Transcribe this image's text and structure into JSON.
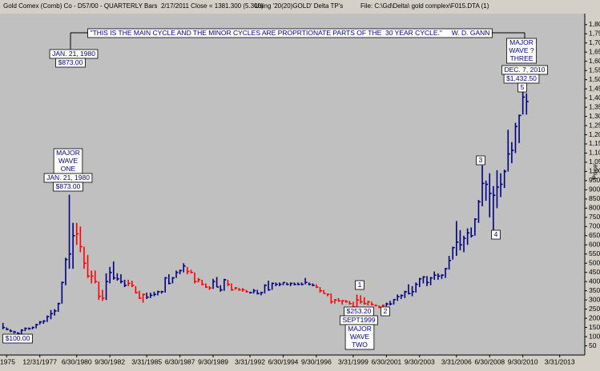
{
  "chart_data": {
    "type": "ohlc",
    "header": [
      "Gold Comex (Comb) Co - D57/00 - QUARTERLY Bars  2/17/2011 Close = 1381.300 (5.300)",
      "Using '20(20)GOLD' Delta TP's",
      "File: C:\\Gd\\Delta\\ gold complex\\F015.DTA (1)"
    ],
    "y_label": "Price",
    "xlim": [
      1975.3,
      2014.95
    ],
    "ylim": [
      0,
      1860
    ],
    "xticks": [
      {
        "value": 1975.75,
        "label": "/1975"
      },
      {
        "value": 1978.0,
        "label": "12/31/1977"
      },
      {
        "value": 1980.5,
        "label": "6/30/1980"
      },
      {
        "value": 1982.75,
        "label": "9/30/1982"
      },
      {
        "value": 1985.25,
        "label": "3/31/1985"
      },
      {
        "value": 1987.5,
        "label": "6/30/1987"
      },
      {
        "value": 1989.75,
        "label": "9/30/1989"
      },
      {
        "value": 1992.25,
        "label": "3/31/1992"
      },
      {
        "value": 1994.5,
        "label": "6/30/1994"
      },
      {
        "value": 1996.75,
        "label": "9/30/1996"
      },
      {
        "value": 1999.25,
        "label": "3/31/1999"
      },
      {
        "value": 2001.5,
        "label": "6/30/2001"
      },
      {
        "value": 2003.75,
        "label": "9/30/2003"
      },
      {
        "value": 2006.25,
        "label": "3/31/2006"
      },
      {
        "value": 2008.5,
        "label": "6/30/2008"
      },
      {
        "value": 2010.75,
        "label": "9/30/2010"
      },
      {
        "value": 2013.25,
        "label": "3/31/2013"
      }
    ],
    "yticks": [
      50,
      100,
      150,
      200,
      250,
      300,
      350,
      400,
      450,
      500,
      550,
      600,
      650,
      700,
      750,
      800,
      850,
      900,
      950,
      {
        "value": 1000,
        "label": "1,000"
      },
      {
        "value": 1050,
        "label": "1,050"
      },
      {
        "value": 1100,
        "label": "1,100"
      },
      {
        "value": 1150,
        "label": "1,150"
      },
      {
        "value": 1200,
        "label": "1,200"
      },
      {
        "value": 1250,
        "label": "1,250"
      },
      {
        "value": 1300,
        "label": "1,300"
      },
      {
        "value": 1350,
        "label": "1,350"
      },
      {
        "value": 1400,
        "label": "1,400"
      },
      {
        "value": 1450,
        "label": "1,450"
      },
      {
        "value": 1500,
        "label": "1,500"
      },
      {
        "value": 1550,
        "label": "1,550"
      },
      {
        "value": 1600,
        "label": "1,600"
      },
      {
        "value": 1650,
        "label": "1,650"
      },
      {
        "value": 1700,
        "label": "1,700"
      },
      {
        "value": 1750,
        "label": "1,750"
      },
      {
        "value": 1800,
        "label": "1,800"
      }
    ],
    "x": [
      1975.5,
      1975.75,
      1976.0,
      1976.25,
      1976.5,
      1976.75,
      1977.0,
      1977.25,
      1977.5,
      1977.75,
      1978.0,
      1978.25,
      1978.5,
      1978.75,
      1979.0,
      1979.25,
      1979.5,
      1979.75,
      1980.0,
      1980.25,
      1980.5,
      1980.75,
      1981.0,
      1981.25,
      1981.5,
      1981.75,
      1982.0,
      1982.25,
      1982.5,
      1982.75,
      1983.0,
      1983.25,
      1983.5,
      1983.75,
      1984.0,
      1984.25,
      1984.5,
      1984.75,
      1985.0,
      1985.25,
      1985.5,
      1985.75,
      1986.0,
      1986.25,
      1986.5,
      1986.75,
      1987.0,
      1987.25,
      1987.5,
      1987.75,
      1988.0,
      1988.25,
      1988.5,
      1988.75,
      1989.0,
      1989.25,
      1989.5,
      1989.75,
      1990.0,
      1990.25,
      1990.5,
      1990.75,
      1991.0,
      1991.25,
      1991.5,
      1991.75,
      1992.0,
      1992.25,
      1992.5,
      1992.75,
      1993.0,
      1993.25,
      1993.5,
      1993.75,
      1994.0,
      1994.25,
      1994.5,
      1994.75,
      1995.0,
      1995.25,
      1995.5,
      1995.75,
      1996.0,
      1996.25,
      1996.5,
      1996.75,
      1997.0,
      1997.25,
      1997.5,
      1997.75,
      1998.0,
      1998.25,
      1998.5,
      1998.75,
      1999.0,
      1999.25,
      1999.5,
      1999.75,
      2000.0,
      2000.25,
      2000.5,
      2000.75,
      2001.0,
      2001.25,
      2001.5,
      2001.75,
      2002.0,
      2002.25,
      2002.5,
      2002.75,
      2003.0,
      2003.25,
      2003.5,
      2003.75,
      2004.0,
      2004.25,
      2004.5,
      2004.75,
      2005.0,
      2005.25,
      2005.5,
      2005.75,
      2006.0,
      2006.25,
      2006.5,
      2006.75,
      2007.0,
      2007.25,
      2007.5,
      2007.75,
      2008.0,
      2008.25,
      2008.5,
      2008.75,
      2009.0,
      2009.25,
      2009.5,
      2009.75,
      2010.0,
      2010.25,
      2010.5,
      2010.75,
      2011.0
    ],
    "high": [
      175,
      150,
      140,
      132,
      125,
      140,
      150,
      150,
      155,
      170,
      185,
      190,
      215,
      245,
      250,
      285,
      400,
      530,
      873,
      720,
      720,
      700,
      590,
      545,
      460,
      460,
      400,
      355,
      445,
      480,
      510,
      445,
      440,
      410,
      410,
      405,
      375,
      350,
      335,
      340,
      340,
      345,
      350,
      350,
      425,
      440,
      425,
      460,
      465,
      500,
      480,
      465,
      450,
      420,
      410,
      390,
      375,
      415,
      425,
      380,
      415,
      410,
      390,
      370,
      365,
      365,
      355,
      345,
      360,
      355,
      345,
      385,
      405,
      395,
      395,
      395,
      395,
      395,
      395,
      395,
      395,
      395,
      420,
      395,
      390,
      385,
      370,
      355,
      335,
      335,
      305,
      310,
      300,
      300,
      295,
      290,
      330,
      325,
      315,
      295,
      290,
      275,
      270,
      275,
      285,
      295,
      305,
      330,
      330,
      350,
      385,
      375,
      395,
      420,
      430,
      430,
      425,
      455,
      445,
      440,
      475,
      540,
      590,
      730,
      680,
      650,
      690,
      695,
      745,
      845,
      1033,
      950,
      990,
      920,
      1007,
      990,
      1010,
      1227,
      1160,
      1265,
      1310,
      1432.5,
      1425
    ],
    "low": [
      140,
      135,
      125,
      118,
      103,
      112,
      130,
      138,
      140,
      145,
      165,
      170,
      180,
      195,
      215,
      235,
      280,
      380,
      470,
      470,
      600,
      560,
      470,
      420,
      390,
      390,
      300,
      295,
      300,
      390,
      410,
      405,
      390,
      370,
      375,
      370,
      335,
      305,
      285,
      305,
      310,
      320,
      325,
      335,
      340,
      385,
      390,
      420,
      440,
      450,
      440,
      445,
      390,
      395,
      380,
      365,
      355,
      360,
      370,
      345,
      350,
      375,
      350,
      355,
      350,
      345,
      340,
      335,
      335,
      330,
      325,
      335,
      350,
      355,
      375,
      375,
      380,
      380,
      375,
      380,
      380,
      380,
      385,
      380,
      375,
      365,
      340,
      335,
      320,
      280,
      280,
      290,
      275,
      285,
      275,
      253,
      253,
      280,
      275,
      270,
      270,
      265,
      255,
      255,
      265,
      270,
      275,
      295,
      305,
      310,
      330,
      320,
      340,
      370,
      390,
      375,
      380,
      410,
      410,
      415,
      420,
      465,
      520,
      540,
      570,
      560,
      600,
      640,
      650,
      720,
      810,
      840,
      750,
      681,
      800,
      860,
      910,
      1000,
      1045,
      1100,
      1155,
      1310,
      1310
    ],
    "close": [
      150,
      140,
      130,
      125,
      118,
      135,
      145,
      143,
      150,
      165,
      180,
      185,
      210,
      225,
      240,
      280,
      395,
      520,
      550,
      650,
      660,
      590,
      500,
      430,
      430,
      400,
      320,
      310,
      400,
      450,
      420,
      415,
      400,
      380,
      390,
      380,
      340,
      310,
      330,
      315,
      325,
      330,
      345,
      345,
      420,
      390,
      420,
      450,
      460,
      485,
      455,
      450,
      400,
      410,
      385,
      370,
      365,
      400,
      370,
      355,
      410,
      385,
      355,
      365,
      355,
      355,
      345,
      340,
      350,
      335,
      340,
      380,
      355,
      390,
      385,
      385,
      395,
      385,
      390,
      385,
      385,
      385,
      395,
      385,
      380,
      370,
      350,
      335,
      330,
      290,
      300,
      295,
      295,
      290,
      280,
      262,
      300,
      290,
      280,
      290,
      275,
      270,
      260,
      270,
      278,
      278,
      302,
      318,
      324,
      345,
      335,
      345,
      385,
      415,
      425,
      395,
      420,
      435,
      430,
      435,
      470,
      515,
      585,
      615,
      600,
      635,
      665,
      650,
      740,
      835,
      935,
      930,
      880,
      870,
      915,
      930,
      1000,
      1095,
      1115,
      1245,
      1305,
      1405,
      1381
    ],
    "colors": [
      "#000080",
      "#000080",
      "#000080",
      "#000080",
      "#000080",
      "#000080",
      "#000080",
      "#000080",
      "#000080",
      "#000080",
      "#000080",
      "#000080",
      "#000080",
      "#000080",
      "#000080",
      "#000080",
      "#000080",
      "#000080",
      "#000080",
      "#000080",
      "#ff0000",
      "#ff0000",
      "#ff0000",
      "#ff0000",
      "#ff0000",
      "#ff0000",
      "#ff0000",
      "#ff0000",
      "#000080",
      "#000080",
      "#000080",
      "#000080",
      "#000080",
      "#000080",
      "#ff0000",
      "#ff0000",
      "#ff0000",
      "#ff0000",
      "#ff0000",
      "#000080",
      "#000080",
      "#000080",
      "#000080",
      "#000080",
      "#000080",
      "#000080",
      "#000080",
      "#000080",
      "#000080",
      "#000080",
      "#ff0000",
      "#ff0000",
      "#ff0000",
      "#ff0000",
      "#ff0000",
      "#ff0000",
      "#ff0000",
      "#000080",
      "#000080",
      "#000080",
      "#000080",
      "#ff0000",
      "#ff0000",
      "#ff0000",
      "#ff0000",
      "#ff0000",
      "#ff0000",
      "#000080",
      "#000080",
      "#000080",
      "#000080",
      "#000080",
      "#000080",
      "#000080",
      "#000080",
      "#000080",
      "#000080",
      "#000080",
      "#000080",
      "#000080",
      "#000080",
      "#000080",
      "#000080",
      "#000080",
      "#000080",
      "#ff0000",
      "#ff0000",
      "#ff0000",
      "#ff0000",
      "#ff0000",
      "#ff0000",
      "#ff0000",
      "#ff0000",
      "#ff0000",
      "#ff0000",
      "#ff0000",
      "#ff0000",
      "#ff0000",
      "#ff0000",
      "#ff0000",
      "#ff0000",
      "#ff0000",
      "#ff0000",
      "#ff0000",
      "#000080",
      "#000080",
      "#000080",
      "#000080",
      "#000080",
      "#000080",
      "#000080",
      "#000080",
      "#000080",
      "#000080",
      "#000080",
      "#000080",
      "#000080",
      "#000080",
      "#000080",
      "#000080",
      "#000080",
      "#000080",
      "#000080",
      "#000080",
      "#000080",
      "#000080",
      "#000080",
      "#000080",
      "#000080",
      "#000080",
      "#000080",
      "#000080",
      "#000080",
      "#000080",
      "#000080",
      "#000080",
      "#000080",
      "#000080",
      "#000080",
      "#000080",
      "#000080",
      "#000080",
      "#000080"
    ],
    "annotations": [
      {
        "lines": [
          "\"THIS IS THE MAIN CYCLE AND THE MINOR CYCLES ARE PROPRTIONATE PARTS OF THE  30 YEAR CYCLE.\"     W. D. GANN"
        ]
      },
      {
        "lines": [
          "JAN. 21, 1980"
        ]
      },
      {
        "lines": [
          "$873.00"
        ]
      },
      {
        "lines": [
          "MAJOR",
          "WAVE",
          "ONE"
        ]
      },
      {
        "lines": [
          "JAN. 21, 1980"
        ]
      },
      {
        "lines": [
          "$873.00"
        ]
      },
      {
        "lines": [
          "$100.00"
        ]
      },
      {
        "lines": [
          "1"
        ]
      },
      {
        "lines": [
          "$253.20"
        ]
      },
      {
        "lines": [
          "SEPT1999"
        ]
      },
      {
        "lines": [
          "MAJOR",
          "WAVE",
          "TWO"
        ]
      },
      {
        "lines": [
          "2"
        ]
      },
      {
        "lines": [
          "3"
        ]
      },
      {
        "lines": [
          "4"
        ]
      },
      {
        "lines": [
          "MAJOR",
          "WAVE ?",
          "THREE"
        ]
      },
      {
        "lines": [
          "DEC. 7, 2010"
        ]
      },
      {
        "lines": [
          "$1,432.50"
        ]
      },
      {
        "lines": [
          "5"
        ]
      }
    ]
  }
}
